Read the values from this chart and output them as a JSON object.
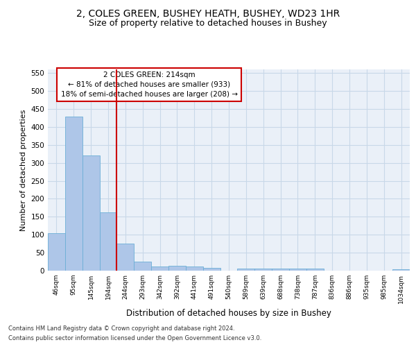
{
  "title": "2, COLES GREEN, BUSHEY HEATH, BUSHEY, WD23 1HR",
  "subtitle": "Size of property relative to detached houses in Bushey",
  "xlabel": "Distribution of detached houses by size in Bushey",
  "ylabel": "Number of detached properties",
  "footnote1": "Contains HM Land Registry data © Crown copyright and database right 2024.",
  "footnote2": "Contains public sector information licensed under the Open Government Licence v3.0.",
  "bin_labels": [
    "46sqm",
    "95sqm",
    "145sqm",
    "194sqm",
    "244sqm",
    "293sqm",
    "342sqm",
    "392sqm",
    "441sqm",
    "491sqm",
    "540sqm",
    "589sqm",
    "639sqm",
    "688sqm",
    "738sqm",
    "787sqm",
    "836sqm",
    "886sqm",
    "935sqm",
    "985sqm",
    "1034sqm"
  ],
  "bar_values": [
    104,
    428,
    321,
    163,
    76,
    25,
    12,
    13,
    11,
    7,
    0,
    5,
    5,
    5,
    5,
    5,
    0,
    0,
    0,
    0,
    4
  ],
  "bar_color": "#aec6e8",
  "bar_edge_color": "#6baed6",
  "grid_color": "#c8d8e8",
  "vline_color": "#cc0000",
  "annotation_text": "2 COLES GREEN: 214sqm\n← 81% of detached houses are smaller (933)\n18% of semi-detached houses are larger (208) →",
  "annotation_fontsize": 7.5,
  "ylim": [
    0,
    560
  ],
  "yticks": [
    0,
    50,
    100,
    150,
    200,
    250,
    300,
    350,
    400,
    450,
    500,
    550
  ],
  "background_color": "#eaf0f8",
  "title_fontsize": 10,
  "subtitle_fontsize": 9
}
